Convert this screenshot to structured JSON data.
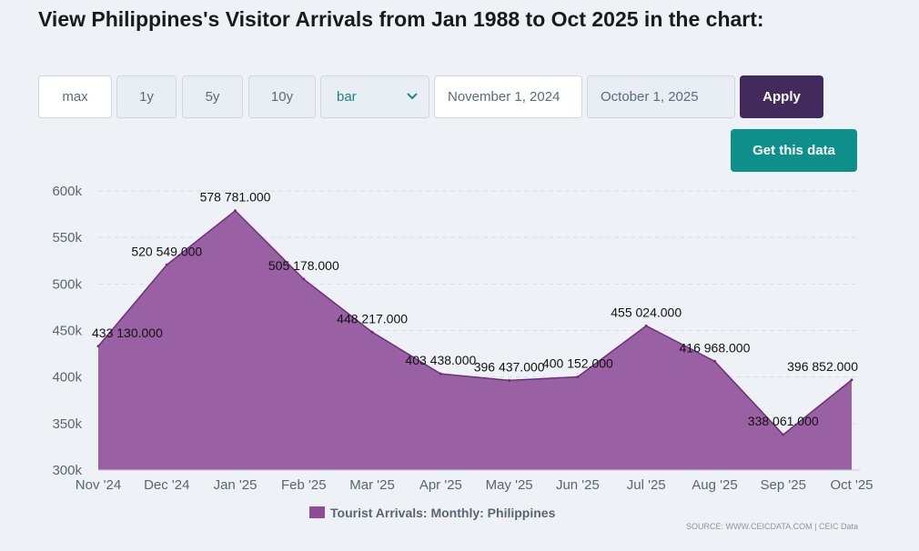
{
  "header": {
    "title": "View Philippines's Visitor Arrivals from Jan 1988 to Oct 2025 in the chart:"
  },
  "controls": {
    "range_buttons": [
      "max",
      "1y",
      "5y",
      "10y"
    ],
    "chart_type_selected": "bar",
    "start_date": "November 1, 2024",
    "end_date": "October 1, 2025",
    "apply_label": "Apply",
    "get_data_label": "Get this data"
  },
  "colors": {
    "series": "#8e4b98",
    "apply_bg": "#422a5c",
    "get_data_bg": "#0f8f8c"
  },
  "chart_data": {
    "type": "area",
    "categories": [
      "Nov '24",
      "Dec '24",
      "Jan '25",
      "Feb '25",
      "Mar '25",
      "Apr '25",
      "May '25",
      "Jun '25",
      "Jul '25",
      "Aug '25",
      "Sep '25",
      "Oct '25"
    ],
    "series": [
      {
        "name": "Tourist Arrivals: Monthly: Philippines",
        "values": [
          433130,
          520549,
          578781,
          505178,
          448217,
          403438,
          396437,
          400152,
          455024,
          416968,
          338061,
          396852
        ],
        "labels": [
          "433 130.000",
          "520 549.000",
          "578 781.000",
          "505 178.000",
          "448 217.000",
          "403 438.000",
          "396 437.000",
          "400 152.000",
          "455 024.000",
          "416 968.000",
          "338 061.000",
          "396 852.000"
        ]
      }
    ],
    "y_ticks": [
      "300k",
      "350k",
      "400k",
      "450k",
      "500k",
      "550k",
      "600k"
    ],
    "y_tick_values": [
      300000,
      350000,
      400000,
      450000,
      500000,
      550000,
      600000
    ],
    "ylim": [
      300000,
      600000
    ],
    "legend": "Tourist Arrivals: Monthly: Philippines",
    "source": "SOURCE: WWW.CEICDATA.COM | CEIC Data"
  }
}
